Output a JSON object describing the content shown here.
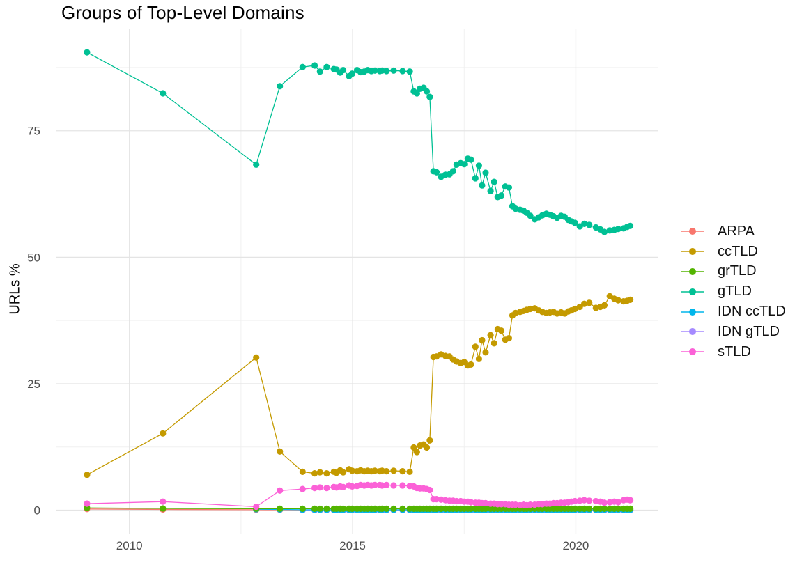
{
  "chart_data": {
    "type": "line",
    "title": "Groups of Top-Level Domains",
    "xlabel": "",
    "ylabel": "URLs %",
    "x_ticks": [
      2010,
      2015,
      2020
    ],
    "x_minor_ticks": [
      2012.5,
      2017.5
    ],
    "y_ticks": [
      0,
      25,
      50,
      75
    ],
    "y_minor_ticks": [
      12.5,
      37.5,
      62.5,
      87.5
    ],
    "x_domain": [
      2008.35,
      2021.85
    ],
    "y_domain": [
      -4.6,
      95.2
    ],
    "grid": true,
    "legend_position": "right",
    "colors": {
      "grid_major": "#E4E4E4",
      "grid_minor": "#F0F0F0",
      "axis_text": "#4D4D4D"
    },
    "dense_x": [
      2013.88,
      2014.15,
      2014.27,
      2014.42,
      2014.58,
      2014.64,
      2014.72,
      2014.79,
      2014.92,
      2014.99,
      2015.1,
      2015.18,
      2015.26,
      2015.34,
      2015.42,
      2015.5,
      2015.61,
      2015.66,
      2015.76,
      2015.92,
      2016.12,
      2016.28,
      2016.37,
      2016.44,
      2016.51,
      2016.59,
      2016.66,
      2016.73,
      2016.81,
      2016.88,
      2016.98,
      2017.08,
      2017.17,
      2017.25,
      2017.33,
      2017.42,
      2017.5,
      2017.58,
      2017.65,
      2017.75,
      2017.83,
      2017.9,
      2017.98,
      2018.09,
      2018.17,
      2018.25,
      2018.33,
      2018.42,
      2018.5,
      2018.58,
      2018.65,
      2018.75,
      2018.83,
      2018.9,
      2018.98,
      2019.08,
      2019.17,
      2019.25,
      2019.34,
      2019.42,
      2019.5,
      2019.58,
      2019.67,
      2019.75,
      2019.83,
      2019.9,
      2019.98,
      2020.09,
      2020.19,
      2020.3,
      2020.45,
      2020.55,
      2020.64,
      2020.76,
      2020.86,
      2020.95,
      2021.07,
      2021.15,
      2021.22
    ],
    "draw_order": [
      "ARPA",
      "IDN gTLD",
      "IDN ccTLD",
      "grTLD",
      "sTLD",
      "ccTLD",
      "gTLD"
    ],
    "series": [
      {
        "name": "ARPA",
        "color": "#F8766D",
        "early": [
          [
            2009.05,
            0.25
          ],
          [
            2010.75,
            0.15
          ],
          [
            2012.84,
            0.1
          ],
          [
            2013.37,
            0.08
          ]
        ],
        "dense_const": 0.05
      },
      {
        "name": "ccTLD",
        "color": "#C49A00",
        "early": [
          [
            2009.05,
            7.0
          ],
          [
            2010.75,
            15.2
          ],
          [
            2012.84,
            30.2
          ],
          [
            2013.37,
            11.6
          ]
        ],
        "dense": [
          7.6,
          7.3,
          7.5,
          7.3,
          7.6,
          7.4,
          7.9,
          7.5,
          8.1,
          7.8,
          7.7,
          7.9,
          7.7,
          7.8,
          7.7,
          7.8,
          7.7,
          7.8,
          7.7,
          7.8,
          7.7,
          7.6,
          12.4,
          11.5,
          12.8,
          13.0,
          12.4,
          13.8,
          30.3,
          30.4,
          30.8,
          30.5,
          30.4,
          29.8,
          29.4,
          29.1,
          29.3,
          28.6,
          28.8,
          32.3,
          29.9,
          33.6,
          31.2,
          34.6,
          33.0,
          35.8,
          35.5,
          33.7,
          34.0,
          38.5,
          39.0,
          39.2,
          39.4,
          39.6,
          39.8,
          39.9,
          39.5,
          39.2,
          39.0,
          39.1,
          39.2,
          38.9,
          39.1,
          38.9,
          39.3,
          39.5,
          39.8,
          40.2,
          40.8,
          41.0,
          40.0,
          40.2,
          40.5,
          42.3,
          41.8,
          41.5,
          41.3,
          41.4,
          41.6
        ]
      },
      {
        "name": "grTLD",
        "color": "#53B400",
        "early": [
          [
            2009.05,
            0.45
          ],
          [
            2010.75,
            0.35
          ],
          [
            2012.84,
            0.3
          ],
          [
            2013.37,
            0.3
          ]
        ],
        "dense_const": 0.3
      },
      {
        "name": "gTLD",
        "color": "#00C094",
        "early": [
          [
            2009.05,
            90.5
          ],
          [
            2010.75,
            82.4
          ],
          [
            2012.84,
            68.3
          ],
          [
            2013.37,
            83.8
          ]
        ],
        "dense": [
          87.6,
          87.9,
          86.7,
          87.6,
          87.2,
          87.1,
          86.5,
          87.0,
          85.8,
          86.3,
          87.0,
          86.6,
          86.7,
          87.0,
          86.8,
          86.9,
          86.8,
          86.9,
          86.8,
          86.9,
          86.8,
          86.7,
          82.8,
          82.4,
          83.3,
          83.5,
          82.8,
          81.7,
          67.0,
          66.8,
          65.9,
          66.3,
          66.4,
          67.0,
          68.3,
          68.6,
          68.4,
          69.5,
          69.3,
          65.6,
          68.1,
          64.2,
          66.7,
          63.1,
          64.9,
          61.9,
          62.2,
          64.0,
          63.8,
          60.1,
          59.6,
          59.4,
          59.2,
          58.8,
          58.2,
          57.5,
          57.9,
          58.3,
          58.6,
          58.4,
          58.1,
          57.8,
          58.2,
          58.0,
          57.4,
          57.1,
          56.8,
          56.1,
          56.6,
          56.4,
          55.9,
          55.5,
          55.0,
          55.3,
          55.4,
          55.6,
          55.7,
          56.0,
          56.2
        ]
      },
      {
        "name": "IDN ccTLD",
        "color": "#00B6EB",
        "early": [
          [
            2012.84,
            0.2
          ],
          [
            2013.37,
            0.15
          ]
        ],
        "dense_const": 0.1
      },
      {
        "name": "IDN gTLD",
        "color": "#A58AFF",
        "early": [],
        "dense_const": 0.03
      },
      {
        "name": "sTLD",
        "color": "#FB61D7",
        "early": [
          [
            2009.05,
            1.3
          ],
          [
            2010.75,
            1.7
          ],
          [
            2012.84,
            0.7
          ],
          [
            2013.37,
            3.9
          ]
        ],
        "dense": [
          4.2,
          4.4,
          4.5,
          4.4,
          4.6,
          4.5,
          4.7,
          4.6,
          4.9,
          4.7,
          4.8,
          5.0,
          4.9,
          5.0,
          4.9,
          5.0,
          5.0,
          4.9,
          5.0,
          4.9,
          4.9,
          4.8,
          4.7,
          4.4,
          4.3,
          4.3,
          4.2,
          4.0,
          2.2,
          2.2,
          2.1,
          2.0,
          1.9,
          1.9,
          1.8,
          1.8,
          1.7,
          1.7,
          1.6,
          1.5,
          1.5,
          1.4,
          1.4,
          1.3,
          1.3,
          1.2,
          1.2,
          1.2,
          1.1,
          1.1,
          1.1,
          1.0,
          1.1,
          1.0,
          1.1,
          1.1,
          1.2,
          1.2,
          1.3,
          1.3,
          1.4,
          1.4,
          1.5,
          1.5,
          1.6,
          1.7,
          1.8,
          1.9,
          2.0,
          1.9,
          1.8,
          1.7,
          1.5,
          1.6,
          1.7,
          1.6,
          2.0,
          2.1,
          2.0
        ]
      }
    ]
  }
}
